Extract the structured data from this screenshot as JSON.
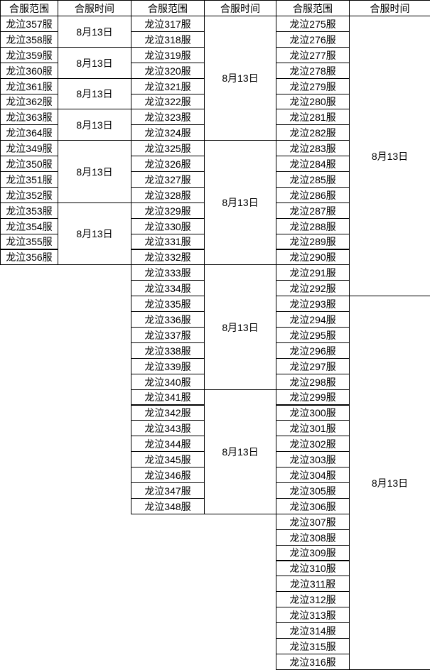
{
  "header": {
    "range": "合服范围",
    "time": "合服时间"
  },
  "tables": [
    {
      "groups": [
        {
          "servers": [
            "龙泣357服",
            "龙泣358服"
          ],
          "time": "8月13日"
        },
        {
          "servers": [
            "龙泣359服",
            "龙泣360服"
          ],
          "time": "8月13日"
        },
        {
          "servers": [
            "龙泣361服",
            "龙泣362服"
          ],
          "time": "8月13日"
        },
        {
          "servers": [
            "龙泣363服",
            "龙泣364服"
          ],
          "time": "8月13日"
        },
        {
          "servers": [
            "龙泣349服",
            "龙泣350服",
            "龙泣351服",
            "龙泣352服"
          ],
          "time": "8月13日"
        },
        {
          "servers": [
            "龙泣353服",
            "龙泣354服",
            "龙泣355服",
            "龙泣356服"
          ],
          "time": "8月13日"
        }
      ]
    },
    {
      "groups": [
        {
          "servers": [
            "龙泣317服",
            "龙泣318服",
            "龙泣319服",
            "龙泣320服",
            "龙泣321服",
            "龙泣322服",
            "龙泣323服",
            "龙泣324服"
          ],
          "time": "8月13日"
        },
        {
          "servers": [
            "龙泣325服",
            "龙泣326服",
            "龙泣327服",
            "龙泣328服",
            "龙泣329服",
            "龙泣330服",
            "龙泣331服",
            "龙泣332服"
          ],
          "time": "8月13日"
        },
        {
          "servers": [
            "龙泣333服",
            "龙泣334服",
            "龙泣335服",
            "龙泣336服",
            "龙泣337服",
            "龙泣338服",
            "龙泣339服",
            "龙泣340服"
          ],
          "time": "8月13日"
        },
        {
          "servers": [
            "龙泣341服",
            "龙泣342服",
            "龙泣343服",
            "龙泣344服",
            "龙泣345服",
            "龙泣346服",
            "龙泣347服",
            "龙泣348服"
          ],
          "time": "8月13日"
        }
      ]
    },
    {
      "groups": [
        {
          "servers": [
            "龙泣275服",
            "龙泣276服",
            "龙泣277服",
            "龙泣278服",
            "龙泣279服",
            "龙泣280服",
            "龙泣281服",
            "龙泣282服",
            "龙泣283服",
            "龙泣284服",
            "龙泣285服",
            "龙泣286服",
            "龙泣287服",
            "龙泣288服",
            "龙泣289服",
            "龙泣290服",
            "龙泣291服",
            "龙泣292服"
          ],
          "time": "8月13日"
        },
        {
          "servers": [
            "龙泣293服",
            "龙泣294服",
            "龙泣295服",
            "龙泣296服",
            "龙泣297服",
            "龙泣298服",
            "龙泣299服",
            "龙泣300服",
            "龙泣301服",
            "龙泣302服",
            "龙泣303服",
            "龙泣304服",
            "龙泣305服",
            "龙泣306服",
            "龙泣307服",
            "龙泣308服",
            "龙泣309服",
            "龙泣310服",
            "龙泣311服",
            "龙泣312服",
            "龙泣313服",
            "龙泣314服",
            "龙泣315服",
            "龙泣316服"
          ],
          "time": "8月13日"
        }
      ]
    }
  ]
}
